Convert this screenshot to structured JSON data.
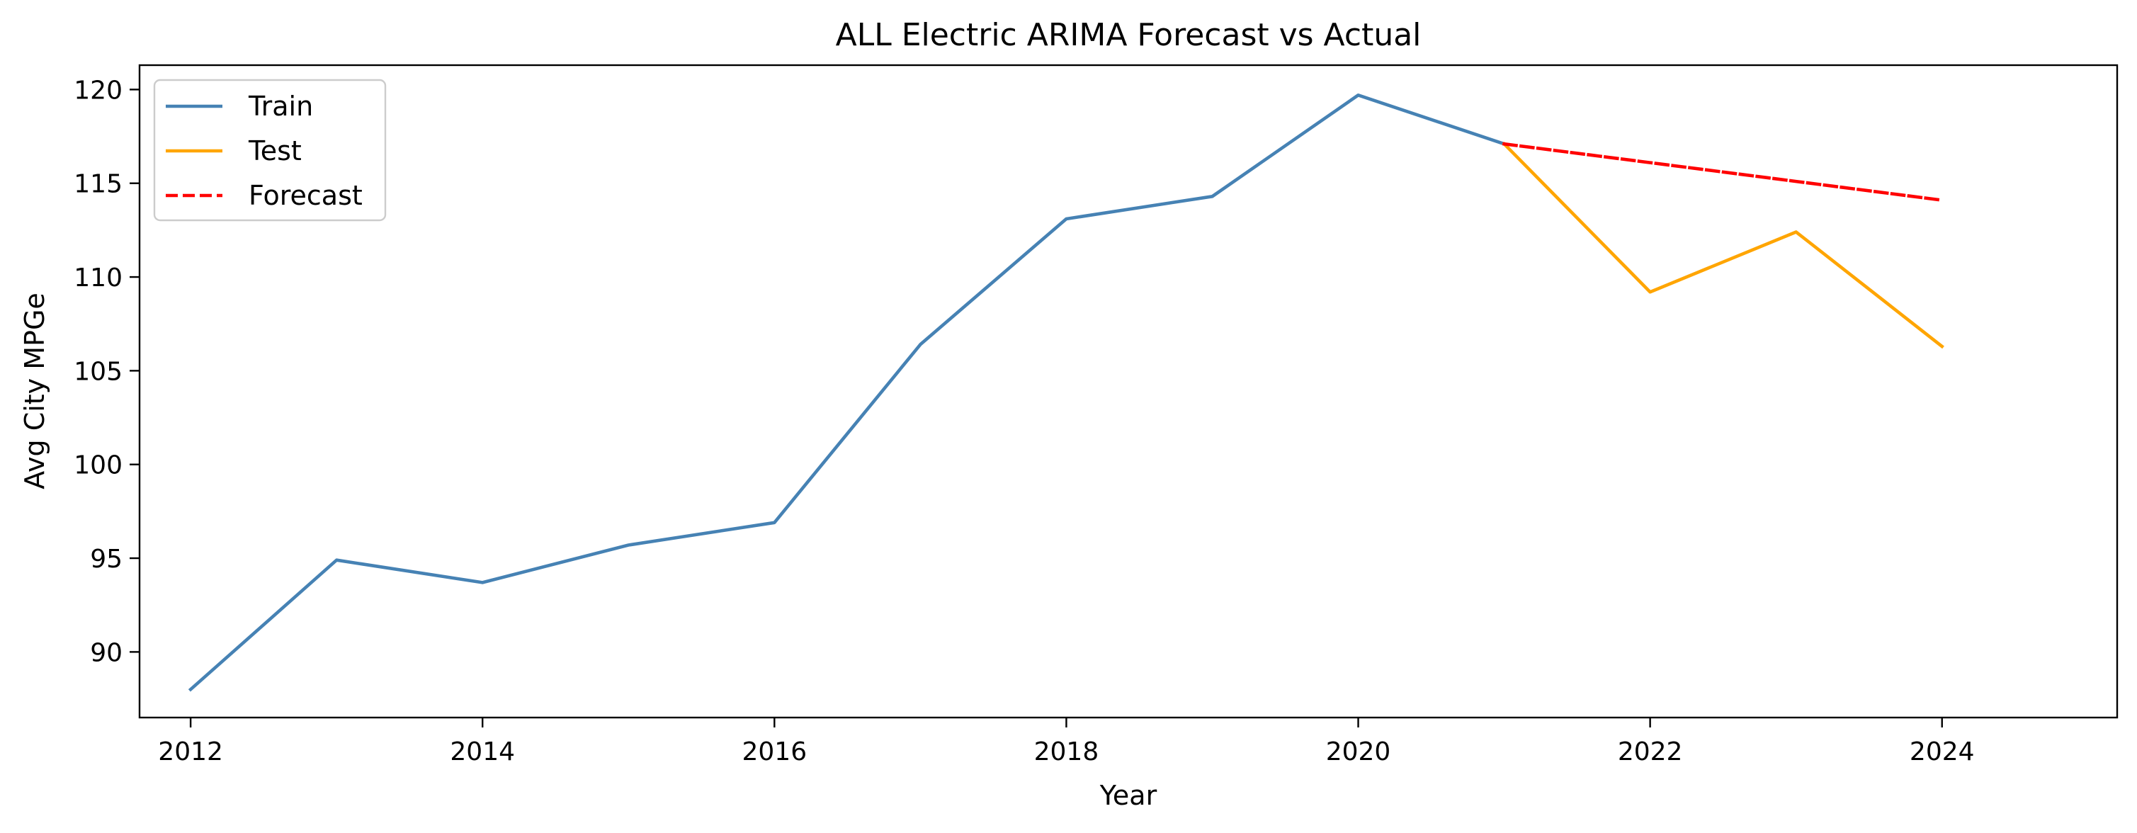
{
  "chart_data": {
    "type": "line",
    "title": "ALL Electric ARIMA Forecast vs Actual",
    "xlabel": "Year",
    "ylabel": "Avg City MPGe",
    "xlim": [
      2011.65,
      2025.2
    ],
    "ylim": [
      86.5,
      121.3
    ],
    "xticks": [
      2012,
      2014,
      2016,
      2018,
      2020,
      2022,
      2024
    ],
    "yticks": [
      90,
      95,
      100,
      105,
      110,
      115,
      120
    ],
    "grid": false,
    "legend_position": "top-left",
    "series": [
      {
        "name": "Train",
        "color": "#4682b4",
        "dash": "solid",
        "x": [
          2012,
          2013,
          2014,
          2015,
          2016,
          2017,
          2018,
          2019,
          2020,
          2021
        ],
        "y": [
          88.0,
          94.9,
          93.7,
          95.7,
          96.9,
          106.4,
          113.1,
          114.3,
          119.7,
          117.1
        ]
      },
      {
        "name": "Test",
        "color": "#ffa500",
        "dash": "solid",
        "x": [
          2021,
          2022,
          2023,
          2024
        ],
        "y": [
          117.1,
          109.2,
          112.4,
          106.3
        ]
      },
      {
        "name": "Forecast",
        "color": "#ff0000",
        "dash": "dashed",
        "x": [
          2021,
          2022,
          2023,
          2024
        ],
        "y": [
          117.1,
          116.1,
          115.1,
          114.1
        ]
      }
    ]
  }
}
